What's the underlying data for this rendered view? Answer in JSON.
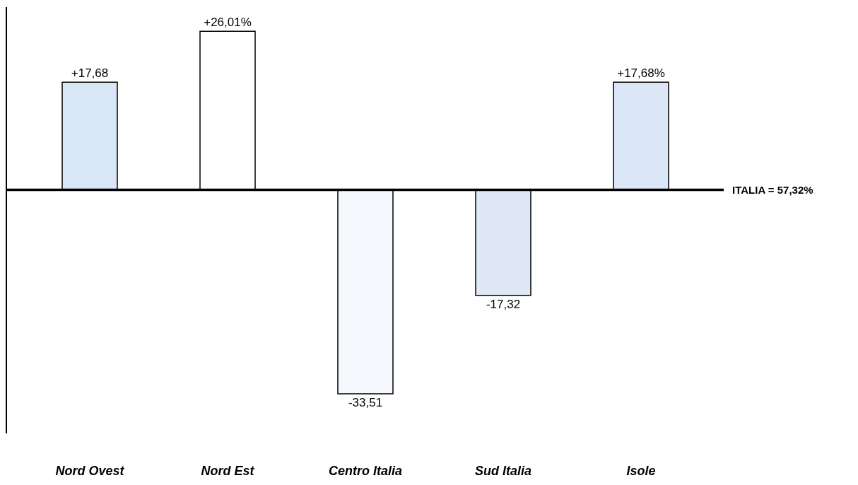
{
  "chart_data": {
    "type": "bar",
    "categories": [
      "Nord Ovest",
      "Nord Est",
      "Centro Italia",
      "Sud Italia",
      "Isole"
    ],
    "values": [
      17.68,
      26.01,
      -33.51,
      -17.32,
      17.68
    ],
    "value_labels": [
      "+17,68",
      "+26,01%",
      "-33,51",
      "-17,32",
      "+17,68%"
    ],
    "colors": [
      "#d9e6f6",
      "#ffffff",
      "#f5f8fc",
      "#dfe9f6",
      "#dbe7f7"
    ],
    "ylim": [
      -40,
      30
    ],
    "ref_lines": [
      {
        "axis": "y",
        "value": 0,
        "color": "#000000"
      }
    ],
    "annotations": [
      "ITALIA = 57,32%"
    ]
  }
}
